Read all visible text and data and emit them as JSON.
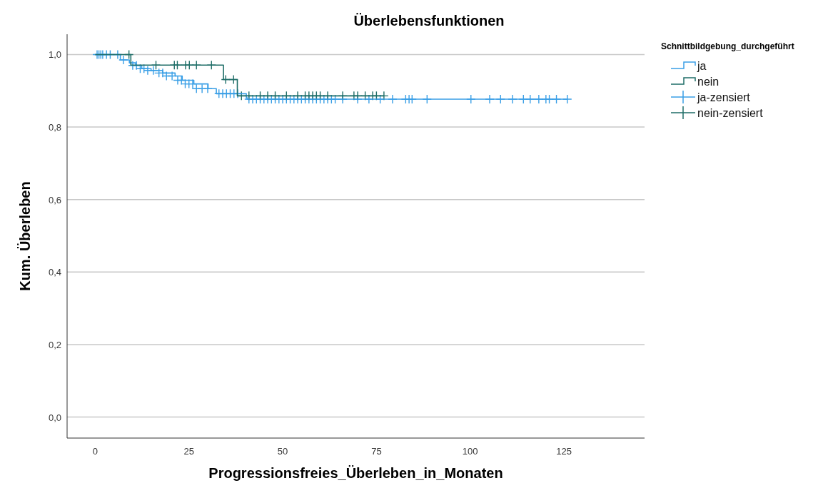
{
  "chart_data": {
    "type": "step",
    "title": "Überlebensfunktionen",
    "xlabel": "Progressionsfreies_Überleben_in_Monaten",
    "ylabel": "Kum. Überleben",
    "legend_title": "Schnittbildgebung_durchgeführt",
    "legend": "right",
    "grid": "y",
    "xlim": [
      -7.5,
      146.5
    ],
    "xticks": [
      0,
      25,
      50,
      75,
      100,
      125
    ],
    "ylim": [
      -0.058,
      1.056
    ],
    "yticks": [
      {
        "value": 0,
        "label": "0,0"
      },
      {
        "value": 0.2,
        "label": "0,2"
      },
      {
        "value": 0.4,
        "label": "0,4"
      },
      {
        "value": 0.6,
        "label": "0,6"
      },
      {
        "value": 0.8,
        "label": "0,8"
      },
      {
        "value": 1,
        "label": "1,0"
      }
    ],
    "series": [
      {
        "name": "ja",
        "color": "#3a9fe6",
        "x": [
          0,
          6.7,
          9.1,
          10.8,
          12.4,
          14.9,
          18,
          21.3,
          23.2,
          26.3,
          30.1,
          32.3,
          40.3,
          40.5,
          126
        ],
        "values": [
          1,
          0.985,
          0.977,
          0.97,
          0.961,
          0.956,
          0.949,
          0.941,
          0.929,
          0.919,
          0.906,
          0.892,
          0.881,
          0.877,
          0.877
        ]
      },
      {
        "name": "nein",
        "color": "#1f6e68",
        "x": [
          0,
          9.5,
          34.2,
          37.9,
          77
        ],
        "values": [
          1,
          0.971,
          0.931,
          0.886,
          0.886
        ]
      },
      {
        "name": "ja-zensiert",
        "type": "scatter",
        "marker": "cross",
        "color": "#3a9fe6",
        "x": [
          0.5,
          1,
          1.5,
          2,
          3,
          4,
          6,
          7.5,
          10,
          11,
          12,
          13,
          14,
          15.5,
          17,
          18,
          19,
          20.5,
          22,
          23,
          24,
          25,
          26,
          27,
          28.5,
          30,
          33,
          34,
          35,
          36,
          37,
          38,
          41,
          42,
          43,
          44,
          45,
          46,
          47,
          48,
          49,
          50,
          51,
          52,
          53,
          54,
          55,
          56,
          57,
          58,
          59,
          60,
          61,
          62,
          63,
          64,
          66,
          70,
          73,
          76,
          79.3,
          82.8,
          83.7,
          84.5,
          88.5,
          100.2,
          105.2,
          108.1,
          111.3,
          114.2,
          116,
          118.3,
          120.2,
          121.1,
          123,
          125.9
        ],
        "values": [
          1,
          1,
          1,
          1,
          1,
          1,
          1,
          0.985,
          0.97,
          0.97,
          0.961,
          0.961,
          0.956,
          0.956,
          0.949,
          0.949,
          0.941,
          0.941,
          0.929,
          0.929,
          0.919,
          0.919,
          0.919,
          0.906,
          0.906,
          0.906,
          0.892,
          0.892,
          0.892,
          0.892,
          0.892,
          0.892,
          0.877,
          0.877,
          0.877,
          0.877,
          0.877,
          0.877,
          0.877,
          0.877,
          0.877,
          0.877,
          0.877,
          0.877,
          0.877,
          0.877,
          0.877,
          0.877,
          0.877,
          0.877,
          0.877,
          0.877,
          0.877,
          0.877,
          0.877,
          0.877,
          0.877,
          0.877,
          0.877,
          0.877,
          0.877,
          0.877,
          0.877,
          0.877,
          0.877,
          0.877,
          0.877,
          0.877,
          0.877,
          0.877,
          0.877,
          0.877,
          0.877,
          0.877,
          0.877,
          0.877
        ]
      },
      {
        "name": "nein-zensiert",
        "type": "scatter",
        "marker": "cross",
        "color": "#1f6e68",
        "x": [
          9,
          16.2,
          21.1,
          21.9,
          24.1,
          25.1,
          27,
          31,
          34.8,
          36.9,
          39,
          41,
          44,
          46,
          48,
          51,
          54,
          56,
          57,
          58,
          59,
          60,
          62,
          66,
          69,
          70,
          72,
          74,
          75,
          77
        ],
        "values": [
          1,
          0.971,
          0.971,
          0.971,
          0.971,
          0.971,
          0.971,
          0.971,
          0.931,
          0.931,
          0.886,
          0.886,
          0.886,
          0.886,
          0.886,
          0.886,
          0.886,
          0.886,
          0.886,
          0.886,
          0.886,
          0.886,
          0.886,
          0.886,
          0.886,
          0.886,
          0.886,
          0.886,
          0.886,
          0.886
        ]
      }
    ]
  }
}
